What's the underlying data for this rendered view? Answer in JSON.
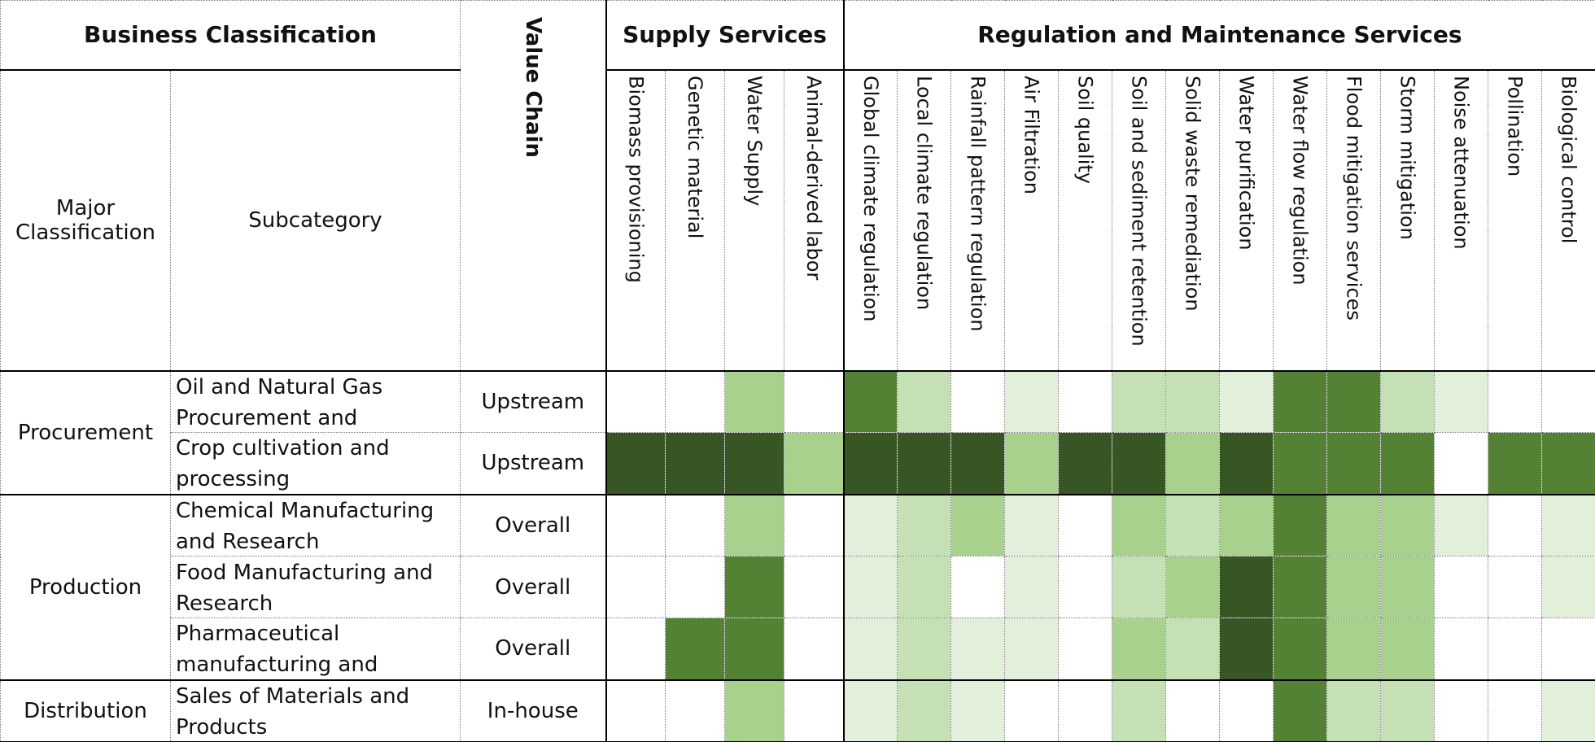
{
  "header": {
    "business_classification": "Business Classification",
    "major_classification": "Major Classification",
    "subcategory": "Subcategory",
    "value_chain": "Value Chain",
    "groups": [
      {
        "label": "Supply Services",
        "services": [
          "Biomass provisioning",
          "Genetic material",
          "Water Supply",
          "Animal-derived labor"
        ]
      },
      {
        "label": "Regulation and Maintenance Services",
        "services": [
          "Global climate regulation",
          "Local climate regulation",
          "Rainfall pattern regulation",
          "Air Filtration",
          "Soil quality",
          "Soil and sediment retention",
          "Solid waste remediation",
          "Water purification",
          "Water flow regulation",
          "Flood mitigation services",
          "Storm mitigation",
          "Noise attenuation",
          "Pollination",
          "Biological control"
        ]
      }
    ]
  },
  "rows": [
    {
      "major": "Procurement",
      "subcategories": [
        {
          "name": "Oil and Natural Gas Procurement and",
          "value_chain": "Upstream",
          "cells": [
            "#ffffff",
            "#ffffff",
            "#a9d18e",
            "#ffffff",
            "#548235",
            "#c5e0b4",
            "#ffffff",
            "#e2efda",
            "#ffffff",
            "#c5e0b4",
            "#c5e0b4",
            "#e2efda",
            "#548235",
            "#548235",
            "#c5e0b4",
            "#e2efda",
            "#ffffff",
            "#ffffff"
          ]
        },
        {
          "name": "Crop cultivation and processing",
          "value_chain": "Upstream",
          "cells": [
            "#375623",
            "#375623",
            "#375623",
            "#a9d18e",
            "#375623",
            "#375623",
            "#375623",
            "#a9d18e",
            "#375623",
            "#375623",
            "#a9d18e",
            "#375623",
            "#548235",
            "#548235",
            "#548235",
            "#ffffff",
            "#548235",
            "#548235"
          ]
        }
      ]
    },
    {
      "major": "Production",
      "subcategories": [
        {
          "name": "Chemical Manufacturing and Research",
          "value_chain": "Overall",
          "cells": [
            "#ffffff",
            "#ffffff",
            "#a9d18e",
            "#ffffff",
            "#e2efda",
            "#c5e0b4",
            "#a9d18e",
            "#e2efda",
            "#ffffff",
            "#a9d18e",
            "#c5e0b4",
            "#a9d18e",
            "#548235",
            "#a9d18e",
            "#a9d18e",
            "#e2efda",
            "#ffffff",
            "#e2efda"
          ]
        },
        {
          "name": "Food Manufacturing and Research",
          "value_chain": "Overall",
          "cells": [
            "#ffffff",
            "#ffffff",
            "#548235",
            "#ffffff",
            "#e2efda",
            "#c5e0b4",
            "#ffffff",
            "#e2efda",
            "#ffffff",
            "#c5e0b4",
            "#a9d18e",
            "#375623",
            "#548235",
            "#a9d18e",
            "#a9d18e",
            "#ffffff",
            "#ffffff",
            "#e2efda"
          ]
        },
        {
          "name": "Pharmaceutical manufacturing and",
          "value_chain": "Overall",
          "cells": [
            "#ffffff",
            "#548235",
            "#548235",
            "#ffffff",
            "#e2efda",
            "#c5e0b4",
            "#e2efda",
            "#e2efda",
            "#ffffff",
            "#a9d18e",
            "#c5e0b4",
            "#375623",
            "#548235",
            "#a9d18e",
            "#a9d18e",
            "#ffffff",
            "#ffffff",
            "#ffffff"
          ]
        }
      ]
    },
    {
      "major": "Distribution",
      "subcategories": [
        {
          "name": "Sales of Materials and Products",
          "value_chain": "In-house",
          "cells": [
            "#ffffff",
            "#ffffff",
            "#a9d18e",
            "#ffffff",
            "#e2efda",
            "#c5e0b4",
            "#e2efda",
            "#ffffff",
            "#ffffff",
            "#c5e0b4",
            "#ffffff",
            "#ffffff",
            "#548235",
            "#c5e0b4",
            "#c5e0b4",
            "#ffffff",
            "#ffffff",
            "#e2efda"
          ]
        }
      ]
    }
  ]
}
